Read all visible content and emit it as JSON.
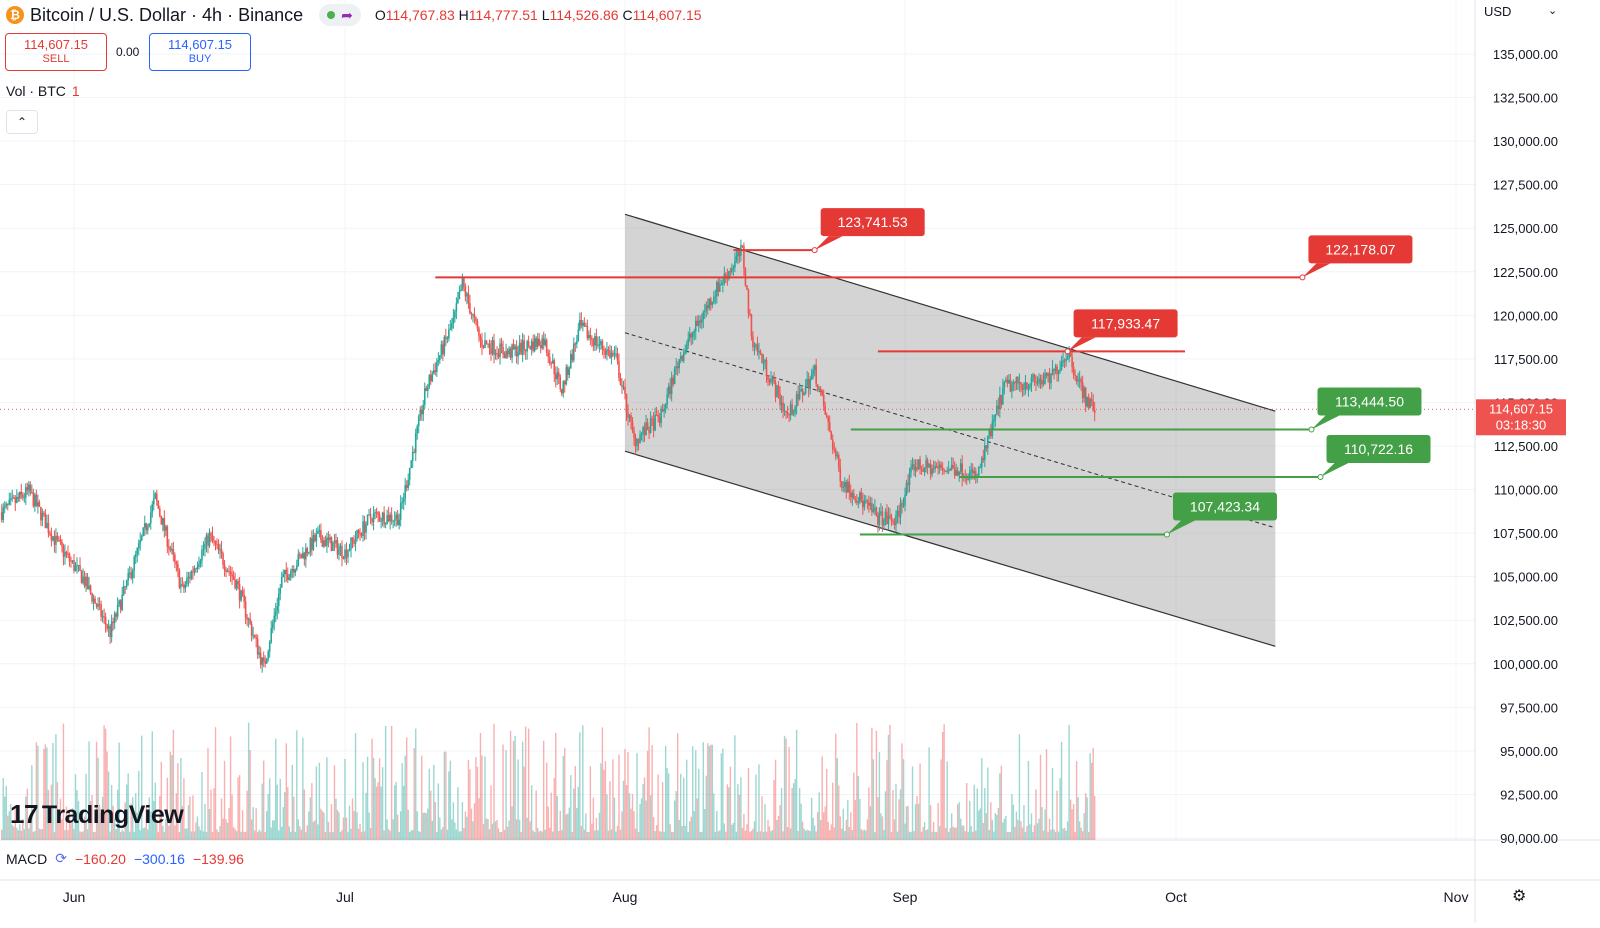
{
  "header": {
    "coin_glyph": "₿",
    "symbol": "Bitcoin / U.S. Dollar · 4h · Binance",
    "share_icon": "share-icon",
    "ohlc": {
      "o": "114,767.83",
      "h": "114,777.51",
      "l": "114,526.86",
      "c": "114,607.15"
    },
    "ohlc_labels": {
      "o": "O",
      "h": "H",
      "l": "L",
      "c": "C"
    }
  },
  "trade": {
    "sell_price": "114,607.15",
    "sell_label": "SELL",
    "spread": "0.00",
    "buy_price": "114,607.15",
    "buy_label": "BUY"
  },
  "volume_legend": {
    "label": "Vol · BTC",
    "value": "1"
  },
  "collapse_glyph": "⌃",
  "currency": "USD",
  "currency_chevron": "⌄",
  "macd": {
    "label": "MACD",
    "v1": "−160.20",
    "v2": "−300.16",
    "v3": "−139.96",
    "icon": "refresh-icon"
  },
  "logo_text": "TradingView",
  "logo_glyph": "17",
  "settings_glyph": "⚙",
  "colors": {
    "up": "#26a69a",
    "down": "#ef5350",
    "resistance": "#e53935",
    "support": "#43a047",
    "channel": "#c8c8c8"
  },
  "chart_data": {
    "type": "candlestick",
    "price_axis": {
      "ticks": [
        135000,
        132500,
        130000,
        127500,
        125000,
        122500,
        120000,
        117500,
        115000,
        112500,
        110000,
        107500,
        105000,
        102500,
        100000,
        97500,
        95000,
        92500,
        90000
      ],
      "tick_labels": [
        "135,000.00",
        "132,500.00",
        "130,000.00",
        "127,500.00",
        "125,000.00",
        "122,500.00",
        "120,000.00",
        "117,500.00",
        "115,000.00",
        "112,500.00",
        "110,000.00",
        "107,500.00",
        "105,000.00",
        "102,500.00",
        "100,000.00",
        "97,500.00",
        "95,000.00",
        "92,500.00",
        "90,000.00"
      ],
      "range": [
        88500,
        137000
      ]
    },
    "time_axis": {
      "labels": [
        "Jun",
        "Jul",
        "Aug",
        "Sep",
        "Oct",
        "Nov"
      ],
      "label_dates": [
        "2025-06-01",
        "2025-07-01",
        "2025-08-01",
        "2025-09-01",
        "2025-10-01",
        "2025-11-01"
      ],
      "range": [
        "2025-05-24",
        "2025-11-08"
      ]
    },
    "current_price": {
      "value": 114607.15,
      "label": "114,607.15",
      "countdown": "03:18:30"
    },
    "price_path": [
      [
        "2025-05-24",
        108700
      ],
      [
        "2025-05-27",
        109900
      ],
      [
        "2025-05-30",
        107000
      ],
      [
        "2025-06-02",
        104900
      ],
      [
        "2025-06-05",
        101800
      ],
      [
        "2025-06-07",
        104800
      ],
      [
        "2025-06-10",
        109500
      ],
      [
        "2025-06-13",
        104200
      ],
      [
        "2025-06-16",
        107300
      ],
      [
        "2025-06-19",
        104600
      ],
      [
        "2025-06-22",
        99800
      ],
      [
        "2025-06-24",
        104800
      ],
      [
        "2025-06-28",
        107300
      ],
      [
        "2025-07-01",
        106400
      ],
      [
        "2025-07-04",
        108500
      ],
      [
        "2025-07-07",
        108400
      ],
      [
        "2025-07-10",
        115800
      ],
      [
        "2025-07-13",
        119600
      ],
      [
        "2025-07-14",
        121800
      ],
      [
        "2025-07-16",
        118500
      ],
      [
        "2025-07-19",
        117800
      ],
      [
        "2025-07-23",
        118600
      ],
      [
        "2025-07-25",
        115700
      ],
      [
        "2025-07-27",
        119300
      ],
      [
        "2025-07-31",
        117500
      ],
      [
        "2025-08-02",
        112800
      ],
      [
        "2025-08-05",
        114200
      ],
      [
        "2025-08-07",
        117500
      ],
      [
        "2025-08-11",
        121400
      ],
      [
        "2025-08-14",
        123700
      ],
      [
        "2025-08-15",
        118800
      ],
      [
        "2025-08-19",
        114200
      ],
      [
        "2025-08-22",
        116800
      ],
      [
        "2025-08-25",
        110500
      ],
      [
        "2025-08-29",
        108400
      ],
      [
        "2025-08-31",
        108200
      ],
      [
        "2025-09-02",
        111400
      ],
      [
        "2025-09-04",
        111200
      ],
      [
        "2025-09-07",
        111200
      ],
      [
        "2025-09-09",
        110700
      ],
      [
        "2025-09-12",
        115900
      ],
      [
        "2025-09-14",
        116100
      ],
      [
        "2025-09-17",
        116300
      ],
      [
        "2025-09-19",
        117900
      ],
      [
        "2025-09-21",
        115200
      ],
      [
        "2025-09-22",
        114607
      ]
    ],
    "channel": {
      "upper": [
        [
          "2025-08-01",
          125800
        ],
        [
          "2025-10-12",
          114500
        ]
      ],
      "lower": [
        [
          "2025-08-01",
          112200
        ],
        [
          "2025-10-12",
          101000
        ]
      ],
      "midline": [
        [
          "2025-08-01",
          119000
        ],
        [
          "2025-10-12",
          107800
        ]
      ]
    },
    "annotations": [
      {
        "label": "123,741.53",
        "price": 123741.53,
        "type": "resistance",
        "line": [
          "2025-08-13",
          "2025-08-22"
        ],
        "anchor": "2025-08-22"
      },
      {
        "label": "122,178.07",
        "price": 122178.07,
        "type": "resistance",
        "line": [
          "2025-07-11",
          "2025-10-15"
        ],
        "anchor": "2025-10-15"
      },
      {
        "label": "117,933.47",
        "price": 117933.47,
        "type": "resistance",
        "line": [
          "2025-08-29",
          "2025-10-02"
        ],
        "anchor": "2025-09-19"
      },
      {
        "label": "113,444.50",
        "price": 113444.5,
        "type": "support",
        "line": [
          "2025-08-26",
          "2025-10-16"
        ],
        "anchor": "2025-10-16"
      },
      {
        "label": "110,722.16",
        "price": 110722.16,
        "type": "support",
        "line": [
          "2025-09-07",
          "2025-10-17"
        ],
        "anchor": "2025-10-17"
      },
      {
        "label": "107,423.34",
        "price": 107423.34,
        "type": "support",
        "line": [
          "2025-08-27",
          "2025-09-30"
        ],
        "anchor": "2025-09-30"
      }
    ],
    "macd_values": [
      -160.2,
      -300.16,
      -139.96
    ]
  }
}
